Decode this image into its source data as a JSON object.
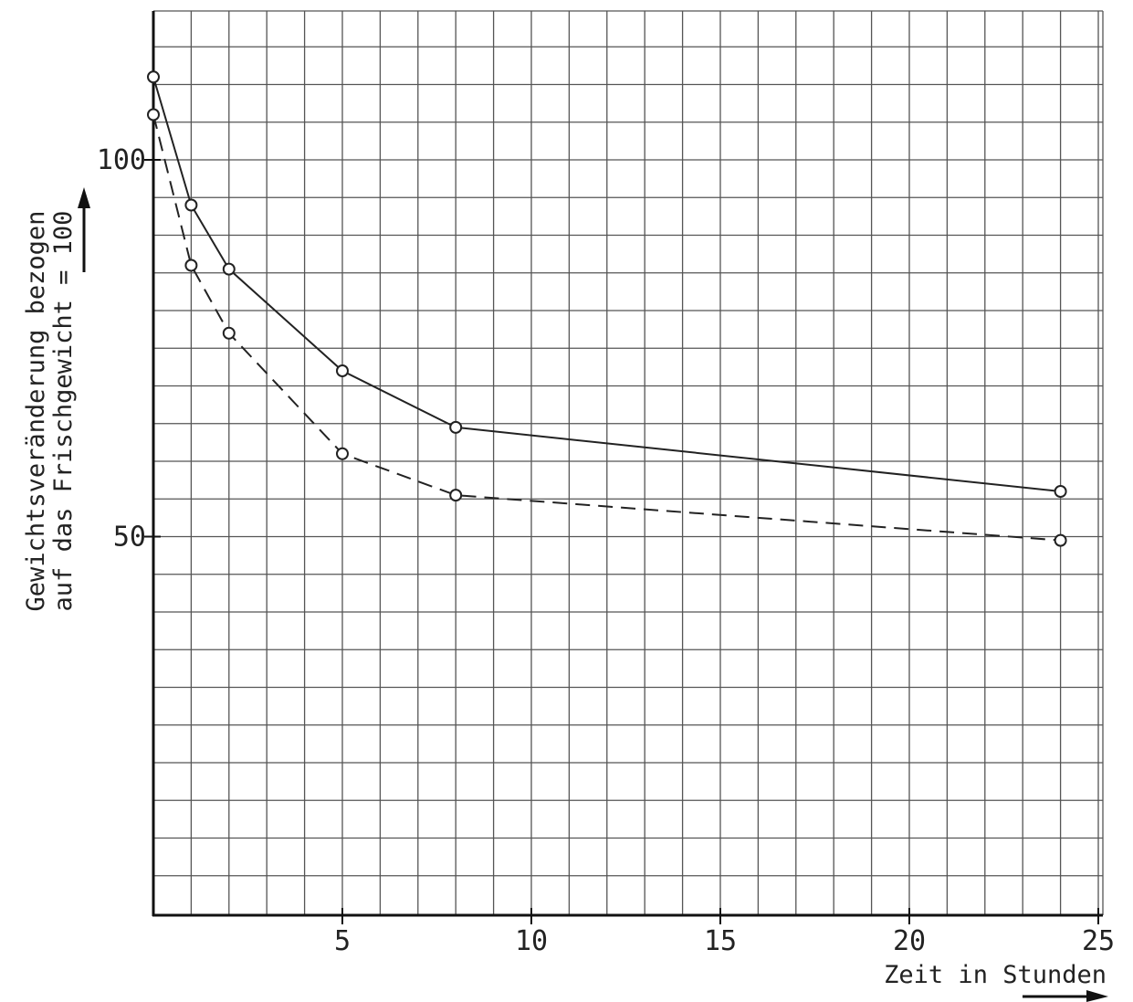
{
  "chart_data": {
    "type": "line",
    "xlabel": "Zeit in Stunden",
    "ylabel": [
      "Gewichtsveränderung bezogen",
      "auf das Frischgewicht = 100"
    ],
    "xlim": [
      0,
      25
    ],
    "ylim": [
      0,
      120
    ],
    "x_ticks": [
      5,
      10,
      15,
      20,
      25
    ],
    "y_ticks": [
      50,
      100
    ],
    "grid": true,
    "grid_step": {
      "x": 1,
      "y": 5
    },
    "legend": "none",
    "series": [
      {
        "style": "solid",
        "points": [
          [
            0,
            111
          ],
          [
            1,
            94
          ],
          [
            2,
            85.5
          ],
          [
            5,
            72
          ],
          [
            8,
            64.5
          ],
          [
            24,
            56
          ]
        ]
      },
      {
        "style": "dashed",
        "points": [
          [
            0,
            106
          ],
          [
            1,
            86
          ],
          [
            2,
            77
          ],
          [
            5,
            61
          ],
          [
            8,
            55.5
          ],
          [
            24,
            49.5
          ]
        ]
      }
    ]
  }
}
